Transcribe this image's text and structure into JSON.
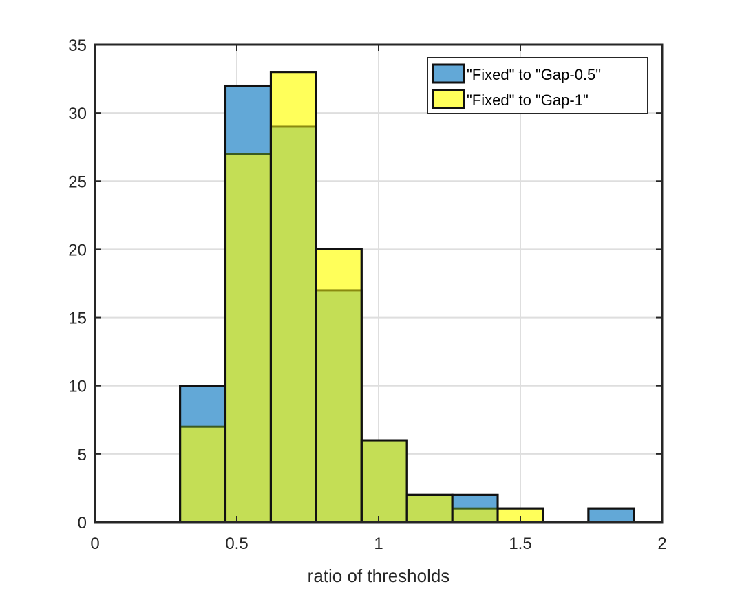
{
  "chart_data": {
    "type": "bar",
    "title": "",
    "xlabel": "ratio of thresholds",
    "ylabel": "",
    "xlim": [
      0,
      2
    ],
    "ylim": [
      0,
      35
    ],
    "xticks": [
      "0",
      "0.5",
      "1",
      "1.5",
      "2"
    ],
    "yticks": [
      "0",
      "5",
      "10",
      "15",
      "20",
      "25",
      "30",
      "35"
    ],
    "grid": true,
    "legend_position": "top-right",
    "bin_edges": [
      0.3,
      0.46,
      0.62,
      0.78,
      0.94,
      1.1,
      1.26,
      1.42,
      1.58,
      1.74,
      1.9
    ],
    "series": [
      {
        "name": "\"Fixed\" to \"Gap-0.5\"",
        "color": "#0072BD",
        "values": [
          10,
          32,
          29,
          17,
          6,
          2,
          2,
          0,
          0,
          1
        ]
      },
      {
        "name": "\"Fixed\" to \"Gap-1\"",
        "color": "#FFFF00",
        "values": [
          7,
          27,
          33,
          20,
          6,
          2,
          1,
          1,
          0,
          0
        ]
      }
    ],
    "overlap_color": "#C4DE55"
  }
}
